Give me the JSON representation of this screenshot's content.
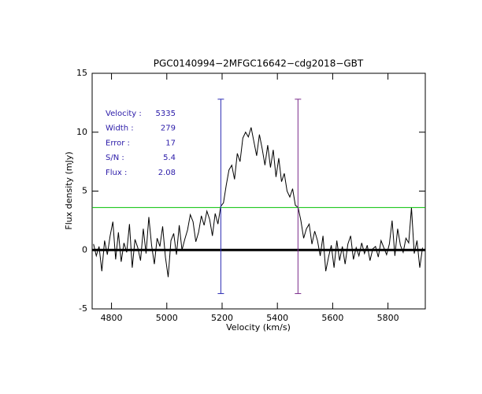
{
  "chart_data": {
    "type": "line",
    "title": "PGC0140994−2MFGC16642−cdg2018−GBT",
    "xlabel": "Velocity (km/s)",
    "ylabel": "Flux density (mJy)",
    "color": "#000000",
    "xlim": [
      4730,
      5935
    ],
    "ylim": [
      -5,
      15
    ],
    "xticks": [
      4800,
      5000,
      5200,
      5400,
      5600,
      5800
    ],
    "yticks": [
      -5,
      0,
      5,
      10,
      15
    ],
    "zero_line": true,
    "hlines": [
      {
        "value": 3.6,
        "color": "#00c000"
      }
    ],
    "vlines": [
      {
        "x": 5195.5,
        "ymin": -3.7,
        "ymax": 12.8,
        "color": "#2c2cb4"
      },
      {
        "x": 5474.5,
        "ymin": -3.7,
        "ymax": 12.8,
        "color": "#7a2a8a"
      }
    ],
    "annotations": [
      {
        "label": "Velocity :",
        "value": "5335"
      },
      {
        "label": "Width :",
        "value": "279"
      },
      {
        "label": "Error :",
        "value": "17"
      },
      {
        "label": "S/N :",
        "value": "5.4"
      },
      {
        "label": "Flux :",
        "value": "2.08"
      }
    ],
    "annotation_color": "#2a1aa8",
    "x": [
      4735,
      4745,
      4755,
      4765,
      4775,
      4785,
      4795,
      4805,
      4815,
      4825,
      4835,
      4845,
      4855,
      4865,
      4875,
      4885,
      4895,
      4905,
      4915,
      4925,
      4935,
      4945,
      4955,
      4965,
      4975,
      4985,
      4995,
      5005,
      5015,
      5025,
      5035,
      5045,
      5055,
      5065,
      5075,
      5085,
      5095,
      5105,
      5115,
      5125,
      5135,
      5145,
      5155,
      5165,
      5175,
      5185,
      5195,
      5205,
      5215,
      5225,
      5235,
      5245,
      5255,
      5265,
      5275,
      5285,
      5295,
      5305,
      5315,
      5325,
      5335,
      5345,
      5355,
      5365,
      5375,
      5385,
      5395,
      5405,
      5415,
      5425,
      5435,
      5445,
      5455,
      5465,
      5475,
      5485,
      5495,
      5505,
      5515,
      5525,
      5535,
      5545,
      5555,
      5565,
      5575,
      5585,
      5595,
      5605,
      5615,
      5625,
      5635,
      5645,
      5655,
      5665,
      5675,
      5685,
      5695,
      5705,
      5715,
      5725,
      5735,
      5745,
      5755,
      5765,
      5775,
      5785,
      5795,
      5805,
      5815,
      5825,
      5835,
      5845,
      5855,
      5865,
      5875,
      5885,
      5895,
      5905,
      5915,
      5925
    ],
    "values": [
      0.5,
      -0.5,
      0.3,
      -1.8,
      0.8,
      -0.4,
      1.2,
      2.4,
      -0.8,
      1.5,
      -1.0,
      0.6,
      -0.2,
      2.2,
      -1.5,
      0.9,
      0.2,
      -0.9,
      1.8,
      -0.3,
      2.8,
      0.4,
      -1.2,
      1.0,
      0.3,
      2.0,
      -0.6,
      -2.3,
      0.8,
      1.4,
      -0.4,
      2.1,
      0.0,
      0.9,
      1.7,
      3.0,
      2.4,
      0.7,
      1.5,
      2.9,
      2.1,
      3.3,
      2.6,
      1.2,
      3.1,
      2.2,
      3.7,
      4.0,
      5.5,
      6.8,
      7.2,
      6.0,
      8.2,
      7.5,
      9.5,
      10.0,
      9.6,
      10.4,
      9.2,
      8.0,
      9.8,
      8.6,
      7.2,
      8.9,
      7.0,
      8.5,
      6.2,
      7.8,
      5.8,
      6.5,
      5.0,
      4.5,
      5.2,
      3.8,
      3.6,
      2.5,
      1.0,
      1.8,
      2.2,
      0.5,
      1.6,
      0.8,
      -0.5,
      1.2,
      -1.8,
      -0.6,
      0.4,
      -1.5,
      0.8,
      -0.9,
      0.3,
      -1.2,
      0.5,
      1.2,
      -0.8,
      0.2,
      -0.5,
      0.6,
      -0.3,
      0.4,
      -0.9,
      0.1,
      0.3,
      -0.6,
      0.8,
      0.2,
      -0.4,
      0.5,
      2.5,
      -0.5,
      1.8,
      0.4,
      -0.2,
      1.0,
      0.6,
      3.6,
      -0.3,
      0.8,
      -1.5,
      0.2
    ]
  }
}
